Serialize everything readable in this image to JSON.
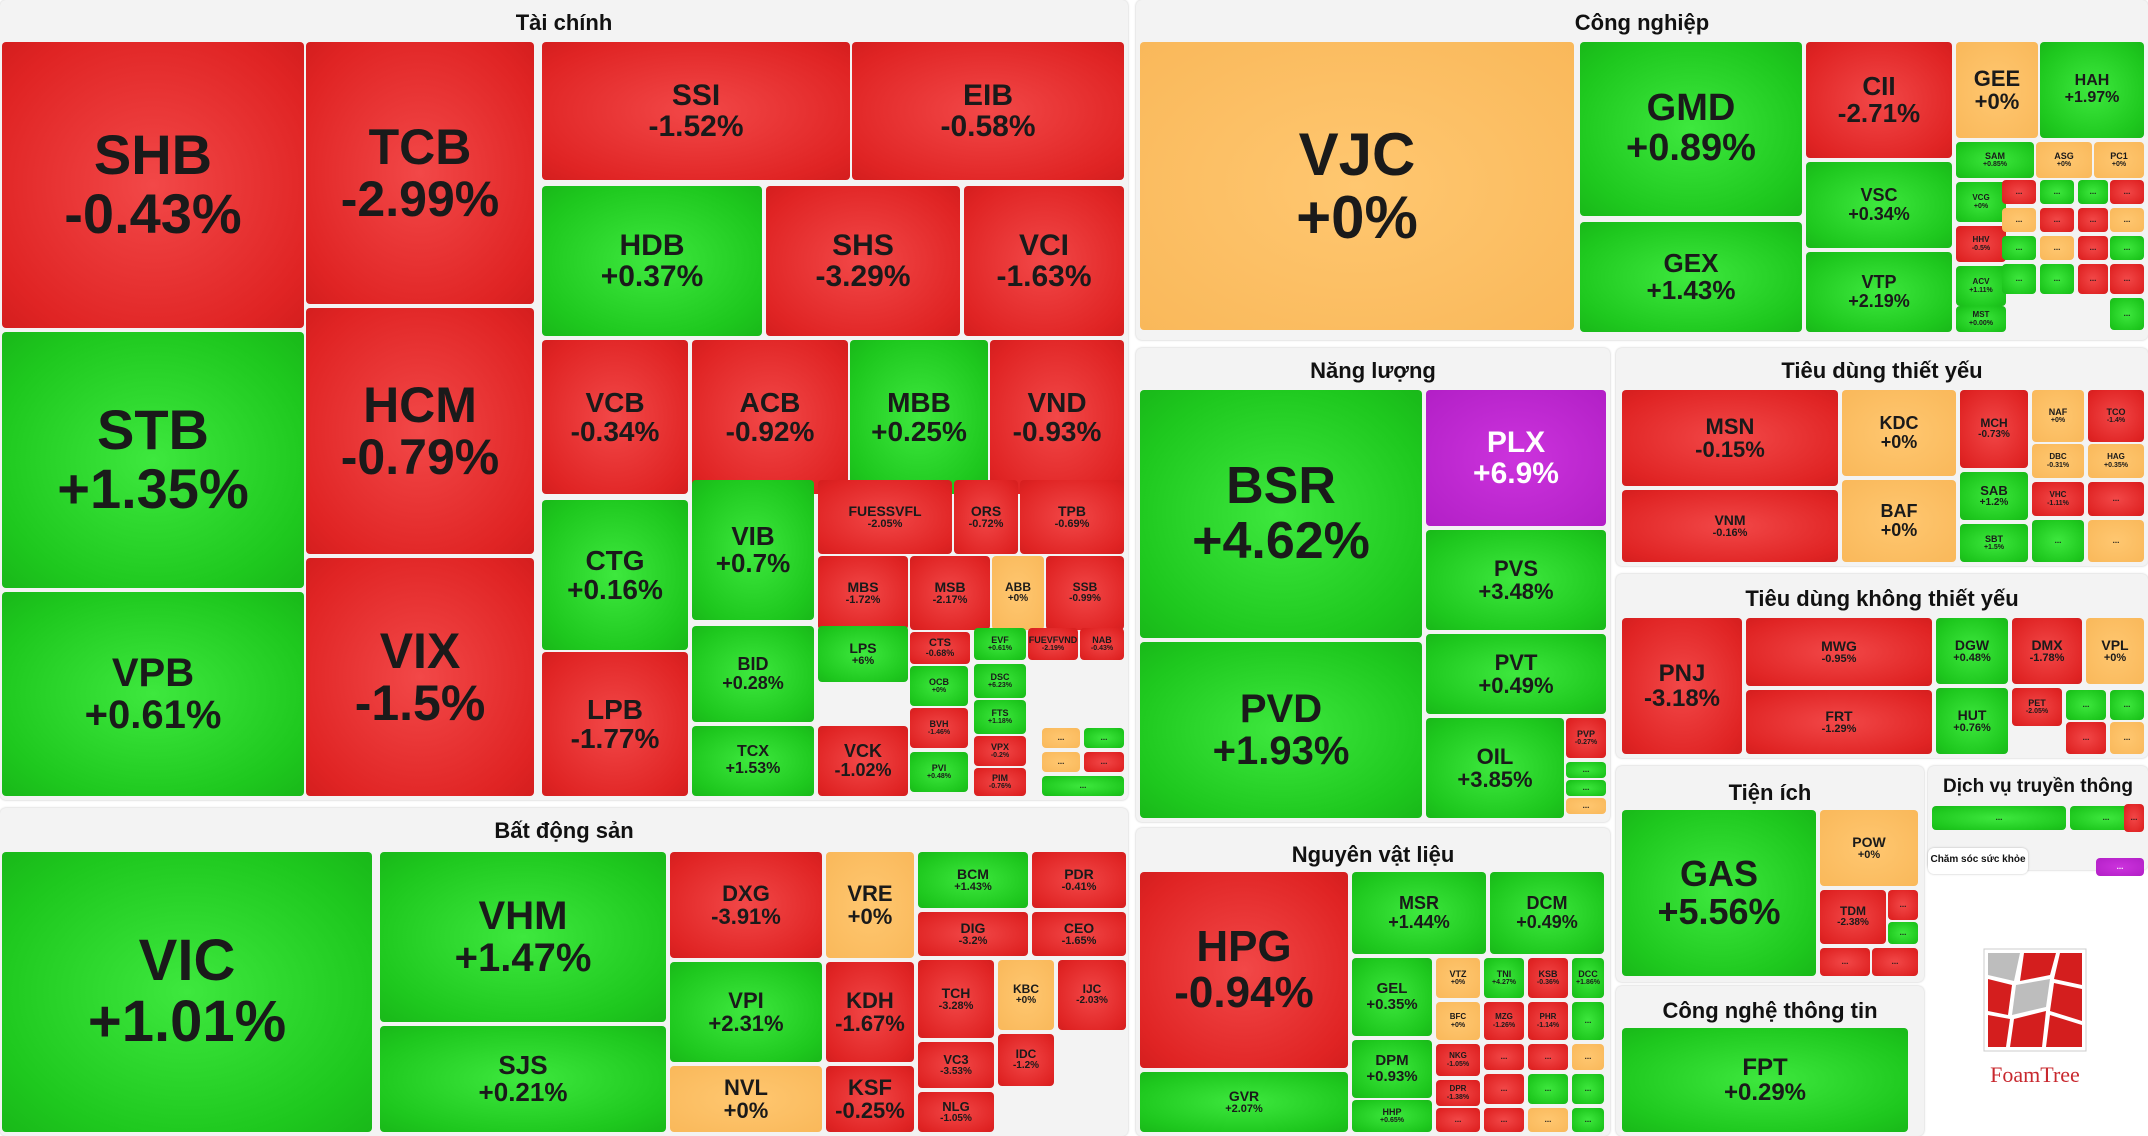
{
  "colors": {
    "up": "#1ec81e",
    "down": "#e02424",
    "flat": "#f9b85a",
    "ceiling": "#b21fc6"
  },
  "sectors": {
    "tai_chinh": {
      "title": "Tài chính",
      "tiles": [
        {
          "code": "SHB",
          "change": "-0.43%"
        },
        {
          "code": "TCB",
          "change": "-2.99%"
        },
        {
          "code": "SSI",
          "change": "-1.52%"
        },
        {
          "code": "EIB",
          "change": "-0.58%"
        },
        {
          "code": "STB",
          "change": "+1.35%"
        },
        {
          "code": "HCM",
          "change": "-0.79%"
        },
        {
          "code": "HDB",
          "change": "+0.37%"
        },
        {
          "code": "SHS",
          "change": "-3.29%"
        },
        {
          "code": "VCI",
          "change": "-1.63%"
        },
        {
          "code": "VPB",
          "change": "+0.61%"
        },
        {
          "code": "VIX",
          "change": "-1.5%"
        },
        {
          "code": "VCB",
          "change": "-0.34%"
        },
        {
          "code": "ACB",
          "change": "-0.92%"
        },
        {
          "code": "MBB",
          "change": "+0.25%"
        },
        {
          "code": "VND",
          "change": "-0.93%"
        },
        {
          "code": "CTG",
          "change": "+0.16%"
        },
        {
          "code": "VIB",
          "change": "+0.7%"
        },
        {
          "code": "FUESSVFL",
          "change": "-2.05%"
        },
        {
          "code": "ORS",
          "change": "-0.72%"
        },
        {
          "code": "TPB",
          "change": "-0.69%"
        },
        {
          "code": "MBS",
          "change": "-1.72%"
        },
        {
          "code": "MSB",
          "change": "-2.17%"
        },
        {
          "code": "ABB",
          "change": "+0%"
        },
        {
          "code": "SSB",
          "change": "-0.99%"
        },
        {
          "code": "LPB",
          "change": "-1.77%"
        },
        {
          "code": "BID",
          "change": "+0.28%"
        },
        {
          "code": "LPS",
          "change": "+6%"
        },
        {
          "code": "CTS",
          "change": "-0.68%"
        },
        {
          "code": "EVF",
          "change": "+0.61%"
        },
        {
          "code": "FUEVFVND",
          "change": "-2.19%"
        },
        {
          "code": "NAB",
          "change": "-0.43%"
        },
        {
          "code": "OCB",
          "change": "+0%"
        },
        {
          "code": "DSC",
          "change": "+6.23%"
        },
        {
          "code": "FTS",
          "change": "+1.18%"
        },
        {
          "code": "TCX",
          "change": "+1.53%"
        },
        {
          "code": "VCK",
          "change": "-1.02%"
        },
        {
          "code": "BVH",
          "change": "-1.46%"
        },
        {
          "code": "VPX",
          "change": "-0.2%"
        },
        {
          "code": "PVI",
          "change": "+0.48%"
        },
        {
          "code": "PIM",
          "change": "-0.76%"
        }
      ]
    },
    "bat_dong_san": {
      "title": "Bất động sản",
      "tiles": [
        {
          "code": "VIC",
          "change": "+1.01%"
        },
        {
          "code": "VHM",
          "change": "+1.47%"
        },
        {
          "code": "SJS",
          "change": "+0.21%"
        },
        {
          "code": "DXG",
          "change": "-3.91%"
        },
        {
          "code": "VRE",
          "change": "+0%"
        },
        {
          "code": "VPI",
          "change": "+2.31%"
        },
        {
          "code": "NVL",
          "change": "+0%"
        },
        {
          "code": "KDH",
          "change": "-1.67%"
        },
        {
          "code": "KSF",
          "change": "-0.25%"
        },
        {
          "code": "BCM",
          "change": "+1.43%"
        },
        {
          "code": "PDR",
          "change": "-0.41%"
        },
        {
          "code": "DIG",
          "change": "-3.2%"
        },
        {
          "code": "CEO",
          "change": "-1.65%"
        },
        {
          "code": "TCH",
          "change": "-3.28%"
        },
        {
          "code": "KBC",
          "change": "+0%"
        },
        {
          "code": "IJC",
          "change": "-2.03%"
        },
        {
          "code": "IDC",
          "change": "-1.2%"
        },
        {
          "code": "VC3",
          "change": "-3.53%"
        },
        {
          "code": "NLG",
          "change": "-1.05%"
        }
      ]
    },
    "cong_nghiep": {
      "title": "Công nghiệp",
      "tiles": [
        {
          "code": "VJC",
          "change": "+0%"
        },
        {
          "code": "GMD",
          "change": "+0.89%"
        },
        {
          "code": "CII",
          "change": "-2.71%"
        },
        {
          "code": "GEE",
          "change": "+0%"
        },
        {
          "code": "HAH",
          "change": "+1.97%"
        },
        {
          "code": "VSC",
          "change": "+0.34%"
        },
        {
          "code": "SAM",
          "change": "+0.85%"
        },
        {
          "code": "ASG",
          "change": "+0%"
        },
        {
          "code": "PC1",
          "change": "+0%"
        },
        {
          "code": "GEX",
          "change": "+1.43%"
        },
        {
          "code": "VTP",
          "change": "+2.19%"
        },
        {
          "code": "VCG",
          "change": "+0%"
        },
        {
          "code": "HHV",
          "change": "-0.5%"
        },
        {
          "code": "ACV",
          "change": "+1.11%"
        },
        {
          "code": "MST",
          "change": "+0.00%"
        }
      ]
    },
    "nang_luong": {
      "title": "Năng lượng",
      "tiles": [
        {
          "code": "BSR",
          "change": "+4.62%"
        },
        {
          "code": "PLX",
          "change": "+6.9%"
        },
        {
          "code": "PVS",
          "change": "+3.48%"
        },
        {
          "code": "PVD",
          "change": "+1.93%"
        },
        {
          "code": "PVT",
          "change": "+0.49%"
        },
        {
          "code": "OIL",
          "change": "+3.85%"
        },
        {
          "code": "PVP",
          "change": "-0.27%"
        }
      ]
    },
    "nguyen_vat_lieu": {
      "title": "Nguyên vật liệu",
      "tiles": [
        {
          "code": "HPG",
          "change": "-0.94%"
        },
        {
          "code": "MSR",
          "change": "+1.44%"
        },
        {
          "code": "DCM",
          "change": "+0.49%"
        },
        {
          "code": "GEL",
          "change": "+0.35%"
        },
        {
          "code": "VTZ",
          "change": "+0%"
        },
        {
          "code": "TNI",
          "change": "+4.27%"
        },
        {
          "code": "KSB",
          "change": "-0.36%"
        },
        {
          "code": "DCC",
          "change": "+1.86%"
        },
        {
          "code": "BFC",
          "change": "+0%"
        },
        {
          "code": "MZG",
          "change": "-1.26%"
        },
        {
          "code": "PHR",
          "change": "-1.14%"
        },
        {
          "code": "DPM",
          "change": "+0.93%"
        },
        {
          "code": "NKG",
          "change": "-1.05%"
        },
        {
          "code": "DPR",
          "change": "-1.38%"
        },
        {
          "code": "GVR",
          "change": "+2.07%"
        },
        {
          "code": "HHP",
          "change": "+0.65%"
        }
      ]
    },
    "tieu_dung_thiet_yeu": {
      "title": "Tiêu dùng thiết yếu",
      "tiles": [
        {
          "code": "MSN",
          "change": "-0.15%"
        },
        {
          "code": "KDC",
          "change": "+0%"
        },
        {
          "code": "MCH",
          "change": "-0.73%"
        },
        {
          "code": "NAF",
          "change": "+0%"
        },
        {
          "code": "TCO",
          "change": "-1.4%"
        },
        {
          "code": "DBC",
          "change": "-0.31%"
        },
        {
          "code": "HAG",
          "change": "+0.35%"
        },
        {
          "code": "VNM",
          "change": "-0.16%"
        },
        {
          "code": "BAF",
          "change": "+0%"
        },
        {
          "code": "SAB",
          "change": "+1.2%"
        },
        {
          "code": "VHC",
          "change": "-1.11%"
        },
        {
          "code": "SBT",
          "change": "+1.5%"
        }
      ]
    },
    "tieu_dung_khong_thiet_yeu": {
      "title": "Tiêu dùng không thiết yếu",
      "tiles": [
        {
          "code": "PNJ",
          "change": "-3.18%"
        },
        {
          "code": "MWG",
          "change": "-0.95%"
        },
        {
          "code": "DGW",
          "change": "+0.48%"
        },
        {
          "code": "DMX",
          "change": "-1.78%"
        },
        {
          "code": "VPL",
          "change": "+0%"
        },
        {
          "code": "FRT",
          "change": "-1.29%"
        },
        {
          "code": "HUT",
          "change": "+0.76%"
        },
        {
          "code": "PET",
          "change": "-2.05%"
        }
      ]
    },
    "tien_ich": {
      "title": "Tiện ích",
      "tiles": [
        {
          "code": "GAS",
          "change": "+5.56%"
        },
        {
          "code": "POW",
          "change": "+0%"
        },
        {
          "code": "TDM",
          "change": "-2.38%"
        }
      ]
    },
    "dich_vu_truyen_thong": {
      "title": "Dịch vụ truyền thông"
    },
    "cham_soc_suc_khoe": {
      "title": "Chăm sóc sức khỏe"
    },
    "cong_nghe_thong_tin": {
      "title": "Công nghệ thông tin",
      "tiles": [
        {
          "code": "FPT",
          "change": "+0.29%"
        }
      ]
    }
  },
  "more": "...",
  "logo": {
    "text": "FoamTree"
  }
}
